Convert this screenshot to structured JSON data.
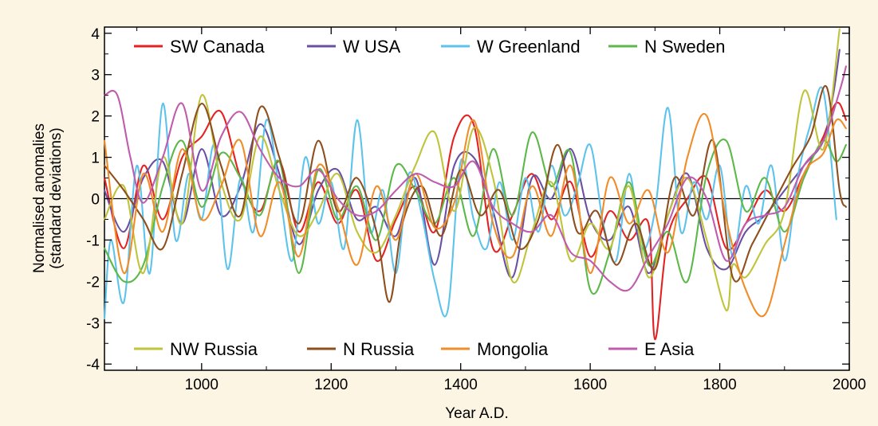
{
  "chart_data": {
    "type": "line",
    "title": "",
    "xlabel": "Year A.D.",
    "ylabel_line1": "Normalised anomalies",
    "ylabel_line2": "(standard deviations)",
    "xlim": [
      850,
      2000
    ],
    "ylim": [
      -4.15,
      4.15
    ],
    "x_ticks": [
      1000,
      1200,
      1400,
      1600,
      1800,
      2000
    ],
    "y_ticks": [
      -4,
      -3,
      -2,
      -1,
      0,
      1,
      2,
      3,
      4
    ],
    "zero_line": true,
    "grid": false,
    "legend_placement": "top and bottom rows inside plot",
    "series": [
      {
        "name": "SW Canada",
        "color": "#e32222",
        "x": [
          850,
          880,
          910,
          940,
          970,
          1000,
          1030,
          1060,
          1090,
          1120,
          1150,
          1180,
          1210,
          1240,
          1270,
          1300,
          1330,
          1360,
          1390,
          1420,
          1450,
          1480,
          1510,
          1540,
          1570,
          1600,
          1630,
          1660,
          1690,
          1700,
          1720,
          1750,
          1780,
          1810,
          1840,
          1870,
          1900,
          1930,
          1960,
          1975,
          1985,
          1995
        ],
        "y": [
          0.5,
          -1.2,
          0.8,
          -0.5,
          1.0,
          1.5,
          2.1,
          0.5,
          -0.3,
          0.9,
          -0.8,
          0.4,
          -0.6,
          0.2,
          -1.5,
          -0.5,
          0.3,
          -0.8,
          1.5,
          1.8,
          -1.2,
          -0.4,
          0.6,
          -0.5,
          0.4,
          -1.4,
          -0.3,
          -1.0,
          -0.6,
          -3.4,
          -0.9,
          0.0,
          0.5,
          -1.2,
          -0.6,
          0.2,
          -0.3,
          0.6,
          1.5,
          2.2,
          2.3,
          1.9
        ]
      },
      {
        "name": "W USA",
        "color": "#6a4fa3",
        "x": [
          850,
          880,
          910,
          940,
          970,
          1000,
          1030,
          1060,
          1090,
          1120,
          1150,
          1180,
          1210,
          1240,
          1270,
          1300,
          1330,
          1360,
          1390,
          1420,
          1450,
          1480,
          1510,
          1540,
          1570,
          1600,
          1630,
          1660,
          1690,
          1720,
          1750,
          1780,
          1810,
          1840,
          1870,
          1900,
          1930,
          1960,
          1975,
          1985
        ],
        "y": [
          0.2,
          -0.8,
          0.5,
          0.9,
          -0.6,
          1.2,
          -0.4,
          0.3,
          1.8,
          0.6,
          -1.1,
          0.2,
          0.7,
          -0.5,
          -0.2,
          -0.9,
          0.5,
          -1.6,
          0.8,
          1.0,
          -0.3,
          -1.9,
          0.5,
          0.0,
          1.2,
          -0.5,
          -1.0,
          -0.2,
          -1.8,
          -0.4,
          0.6,
          -1.2,
          -1.7,
          -0.8,
          -0.4,
          0.2,
          0.8,
          1.4,
          2.5,
          3.6
        ]
      },
      {
        "name": "W Greenland",
        "color": "#5ec3ec",
        "x": [
          850,
          860,
          880,
          900,
          920,
          940,
          960,
          980,
          1000,
          1020,
          1040,
          1060,
          1080,
          1100,
          1120,
          1140,
          1160,
          1180,
          1200,
          1220,
          1240,
          1260,
          1280,
          1300,
          1320,
          1340,
          1360,
          1380,
          1400,
          1420,
          1440,
          1460,
          1480,
          1500,
          1520,
          1540,
          1560,
          1580,
          1600,
          1620,
          1640,
          1660,
          1680,
          1700,
          1720,
          1740,
          1760,
          1780,
          1800,
          1820,
          1840,
          1860,
          1880,
          1900,
          1920,
          1940,
          1960,
          1980
        ],
        "y": [
          -2.9,
          -1.0,
          -2.5,
          0.8,
          -1.8,
          2.3,
          -1.0,
          0.6,
          -0.5,
          1.3,
          -1.7,
          0.5,
          -0.8,
          1.9,
          0.2,
          -1.5,
          1.0,
          -0.6,
          0.4,
          -1.2,
          1.9,
          -0.8,
          0.2,
          -1.8,
          0.6,
          -0.4,
          -2.0,
          -2.7,
          0.9,
          -0.5,
          -1.2,
          0.4,
          -1.0,
          0.5,
          -0.8,
          0.8,
          -0.4,
          0.3,
          1.3,
          -0.6,
          -1.5,
          0.6,
          -1.2,
          -0.3,
          2.2,
          -0.8,
          0.4,
          -0.5,
          0.8,
          -1.4,
          0.3,
          -0.6,
          0.8,
          -1.5,
          0.5,
          1.8,
          2.6,
          -0.5
        ]
      },
      {
        "name": "N Sweden",
        "color": "#5cb848",
        "x": [
          850,
          880,
          910,
          940,
          970,
          1000,
          1030,
          1060,
          1090,
          1120,
          1150,
          1180,
          1210,
          1240,
          1270,
          1300,
          1330,
          1360,
          1390,
          1420,
          1450,
          1480,
          1510,
          1540,
          1570,
          1600,
          1630,
          1660,
          1690,
          1720,
          1750,
          1780,
          1810,
          1840,
          1870,
          1900,
          1930,
          1960,
          1980,
          1995
        ],
        "y": [
          -1.2,
          -2.0,
          -1.6,
          0.3,
          1.4,
          -0.2,
          1.1,
          0.5,
          -0.4,
          0.9,
          -1.8,
          0.7,
          -0.5,
          0.3,
          -1.0,
          0.8,
          0.2,
          -0.6,
          0.5,
          -0.9,
          1.2,
          -0.4,
          1.6,
          0.3,
          1.1,
          -2.2,
          -1.3,
          0.4,
          -1.6,
          -0.8,
          -2.0,
          0.6,
          1.4,
          -0.3,
          0.5,
          -0.8,
          0.5,
          1.4,
          0.9,
          1.3
        ]
      },
      {
        "name": "NW Russia",
        "color": "#bfc43a",
        "x": [
          850,
          880,
          910,
          940,
          970,
          1000,
          1030,
          1060,
          1090,
          1120,
          1150,
          1180,
          1210,
          1240,
          1270,
          1300,
          1330,
          1360,
          1390,
          1420,
          1450,
          1480,
          1510,
          1540,
          1570,
          1600,
          1630,
          1660,
          1690,
          1720,
          1750,
          1780,
          1810,
          1820,
          1840,
          1870,
          1900,
          1930,
          1960,
          1985
        ],
        "y": [
          -0.5,
          0.3,
          -1.8,
          1.0,
          -0.6,
          2.5,
          0.4,
          -0.5,
          1.5,
          0.2,
          -0.9,
          -0.3,
          0.6,
          -0.8,
          -1.3,
          -0.4,
          0.8,
          1.6,
          -0.3,
          1.7,
          0.5,
          -2.0,
          -0.8,
          0.4,
          -1.5,
          -0.6,
          -1.2,
          0.3,
          -1.9,
          -0.4,
          0.5,
          -1.0,
          -2.7,
          -1.6,
          -1.9,
          -1.1,
          -0.3,
          2.6,
          1.2,
          4.1
        ]
      },
      {
        "name": "N Russia",
        "color": "#8e4f1e",
        "x": [
          850,
          880,
          910,
          940,
          970,
          1000,
          1030,
          1060,
          1090,
          1120,
          1150,
          1180,
          1210,
          1240,
          1270,
          1290,
          1310,
          1340,
          1370,
          1400,
          1430,
          1460,
          1490,
          1520,
          1550,
          1580,
          1610,
          1640,
          1670,
          1700,
          1730,
          1760,
          1790,
          1820,
          1850,
          1880,
          1910,
          1940,
          1965,
          1985,
          1995
        ],
        "y": [
          0.8,
          0.2,
          -0.5,
          -1.2,
          0.6,
          2.3,
          0.8,
          -0.4,
          2.2,
          1.0,
          -0.6,
          1.4,
          -0.3,
          0.5,
          -0.8,
          -2.5,
          -0.6,
          0.3,
          -0.9,
          0.7,
          -0.4,
          0.2,
          -1.2,
          -0.5,
          1.3,
          -0.8,
          -0.3,
          -1.6,
          -0.6,
          -1.7,
          0.5,
          -0.4,
          1.4,
          -1.9,
          -1.1,
          -0.2,
          0.7,
          1.5,
          2.7,
          0.2,
          -0.2
        ]
      },
      {
        "name": "Mongolia",
        "color": "#f08d2a",
        "x": [
          850,
          880,
          910,
          940,
          970,
          1000,
          1030,
          1060,
          1090,
          1120,
          1150,
          1180,
          1210,
          1240,
          1270,
          1300,
          1330,
          1360,
          1390,
          1420,
          1450,
          1480,
          1510,
          1540,
          1570,
          1600,
          1630,
          1660,
          1690,
          1720,
          1750,
          1780,
          1810,
          1840,
          1870,
          1900,
          1930,
          1960,
          1980,
          1995
        ],
        "y": [
          1.4,
          -1.8,
          0.6,
          -0.8,
          1.2,
          -0.5,
          0.3,
          1.4,
          -0.9,
          0.4,
          -1.4,
          0.8,
          -0.2,
          -1.6,
          0.3,
          -1.0,
          0.6,
          -0.7,
          -0.1,
          1.9,
          -0.6,
          -1.4,
          0.3,
          -0.9,
          0.8,
          -1.8,
          0.5,
          -0.6,
          0.2,
          -1.3,
          1.0,
          2.0,
          -0.5,
          -2.2,
          -2.8,
          -1.1,
          0.6,
          1.1,
          1.9,
          1.7
        ]
      },
      {
        "name": "E Asia",
        "color": "#c05cad",
        "x": [
          850,
          870,
          890,
          910,
          940,
          970,
          1000,
          1030,
          1060,
          1090,
          1120,
          1150,
          1180,
          1210,
          1240,
          1270,
          1300,
          1330,
          1360,
          1390,
          1420,
          1450,
          1480,
          1510,
          1540,
          1570,
          1600,
          1630,
          1660,
          1690,
          1720,
          1750,
          1780,
          1810,
          1840,
          1870,
          1900,
          1930,
          1960,
          1985,
          1995
        ],
        "y": [
          2.5,
          2.5,
          1.0,
          -0.1,
          1.0,
          2.3,
          0.2,
          1.5,
          2.1,
          1.2,
          0.5,
          0.3,
          0.7,
          0.0,
          -0.4,
          -0.3,
          0.2,
          0.6,
          0.4,
          0.3,
          0.9,
          -0.2,
          -0.6,
          -0.8,
          -0.4,
          -1.3,
          -1.5,
          -2.0,
          -2.2,
          -1.4,
          -0.6,
          0.5,
          0.0,
          -1.5,
          -0.6,
          -0.4,
          -0.2,
          0.8,
          1.4,
          2.6,
          3.2
        ]
      }
    ]
  }
}
